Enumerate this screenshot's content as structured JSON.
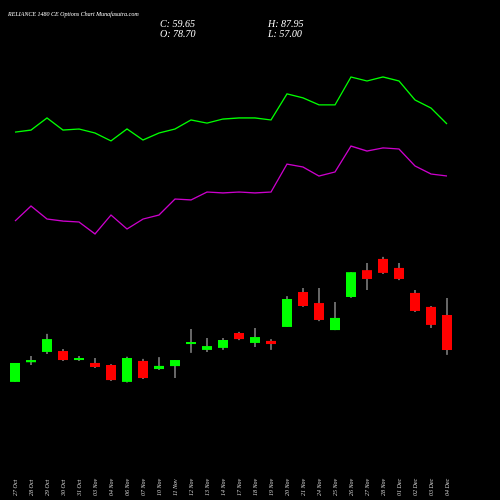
{
  "chart_data": {
    "type": "candlestick",
    "title": "RELIANCE 1480 CE Options Chart Munafasutra.com",
    "header": [
      "C: 59.65",
      "H: 87.95",
      "O: 78.70",
      "L: 57.00"
    ],
    "categories": [
      "27 Oct",
      "28 Oct",
      "29 Oct",
      "30 Oct",
      "31 Oct",
      "03 Nov",
      "04 Nov",
      "06 Nov",
      "07 Nov",
      "10 Nov",
      "11 Nov",
      "12 Nov",
      "13 Nov",
      "14 Nov",
      "17 Nov",
      "18 Nov",
      "19 Nov",
      "20 Nov",
      "21 Nov",
      "24 Nov",
      "25 Nov",
      "26 Nov",
      "27 Nov",
      "28 Nov",
      "01 Dec",
      "02 Dec",
      "03 Dec",
      "04 Dec"
    ],
    "open": [
      42.3,
      53.0,
      58.6,
      59.1,
      54.2,
      52.6,
      51.5,
      42.3,
      53.7,
      49.3,
      50.9,
      62.9,
      59.7,
      60.8,
      68.9,
      63.5,
      64.6,
      72.2,
      91.2,
      85.2,
      70.5,
      88.5,
      103.1,
      109.2,
      104.3,
      90.7,
      83.1,
      78.7
    ],
    "high": [
      52.6,
      56.4,
      68.4,
      60.2,
      56.4,
      55.3,
      52.0,
      56.0,
      54.8,
      55.8,
      54.2,
      71.1,
      66.2,
      66.2,
      69.5,
      71.6,
      65.6,
      89.0,
      93.4,
      93.4,
      85.8,
      102.0,
      107.0,
      110.3,
      107.0,
      92.3,
      83.6,
      87.95
    ],
    "low": [
      42.3,
      51.5,
      57.5,
      53.7,
      53.7,
      49.9,
      42.8,
      42.0,
      43.9,
      48.8,
      44.4,
      58.1,
      58.6,
      59.7,
      65.0,
      61.3,
      59.7,
      72.2,
      83.1,
      75.4,
      70.5,
      88.0,
      92.3,
      101.0,
      97.7,
      80.3,
      71.6,
      57.0
    ],
    "close": [
      52.6,
      54.2,
      65.6,
      54.2,
      55.3,
      50.4,
      43.3,
      55.3,
      44.4,
      51.0,
      54.2,
      64.0,
      61.8,
      65.1,
      65.6,
      66.7,
      62.9,
      87.4,
      83.6,
      76.0,
      77.1,
      102.0,
      98.3,
      101.6,
      98.3,
      80.9,
      73.3,
      59.65
    ],
    "up_color": "#00ff00",
    "down_color": "#ff0000",
    "lines": [
      {
        "color": "#00ff00",
        "values": [
          178.2,
          179.3,
          185.9,
          179.3,
          179.9,
          177.7,
          173.4,
          179.9,
          173.9,
          177.7,
          179.9,
          184.8,
          183.1,
          185.3,
          185.9,
          185.9,
          184.8,
          199.0,
          196.8,
          193.0,
          193.0,
          208.2,
          206.0,
          208.2,
          206.0,
          195.7,
          191.3,
          182.6
        ]
      },
      {
        "color": "#cc00cc",
        "values": [
          129.8,
          138.0,
          130.9,
          129.8,
          129.3,
          122.8,
          133.1,
          125.5,
          130.9,
          133.1,
          141.8,
          141.3,
          145.6,
          145.1,
          145.6,
          145.1,
          145.6,
          160.8,
          159.2,
          154.3,
          156.5,
          170.6,
          167.9,
          169.6,
          169.0,
          159.8,
          155.4,
          154.3
        ]
      }
    ],
    "ylim": [
      20,
      240
    ]
  }
}
